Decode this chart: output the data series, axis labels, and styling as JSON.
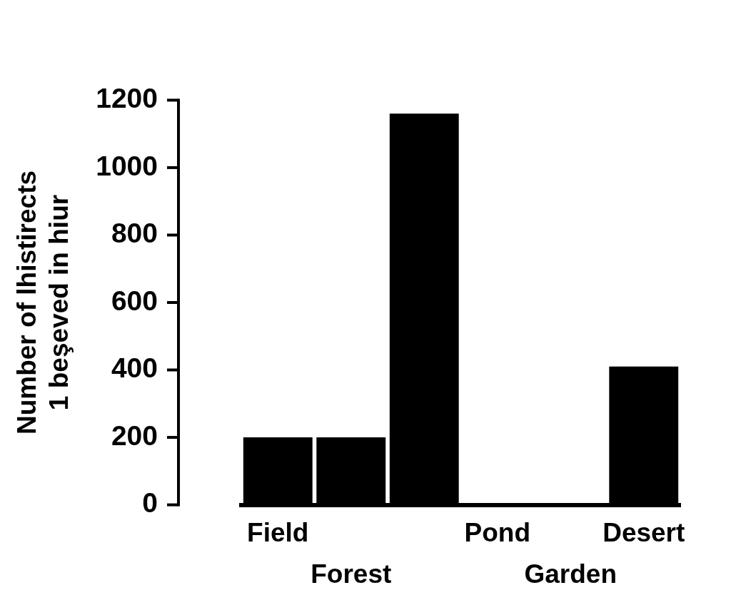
{
  "chart_data": {
    "type": "bar",
    "ylabel": "Number of lhistirects\n1 beşeved in hiur",
    "categories": [
      "Field",
      "Forest",
      null,
      "Pond",
      "Garden",
      "Desert"
    ],
    "values": [
      200,
      200,
      1160,
      0,
      0,
      410
    ],
    "color": "#000000",
    "ylim": [
      0,
      1200
    ],
    "yticks": [
      0,
      200,
      400,
      600,
      800,
      1000,
      1200
    ],
    "grid": false
  }
}
